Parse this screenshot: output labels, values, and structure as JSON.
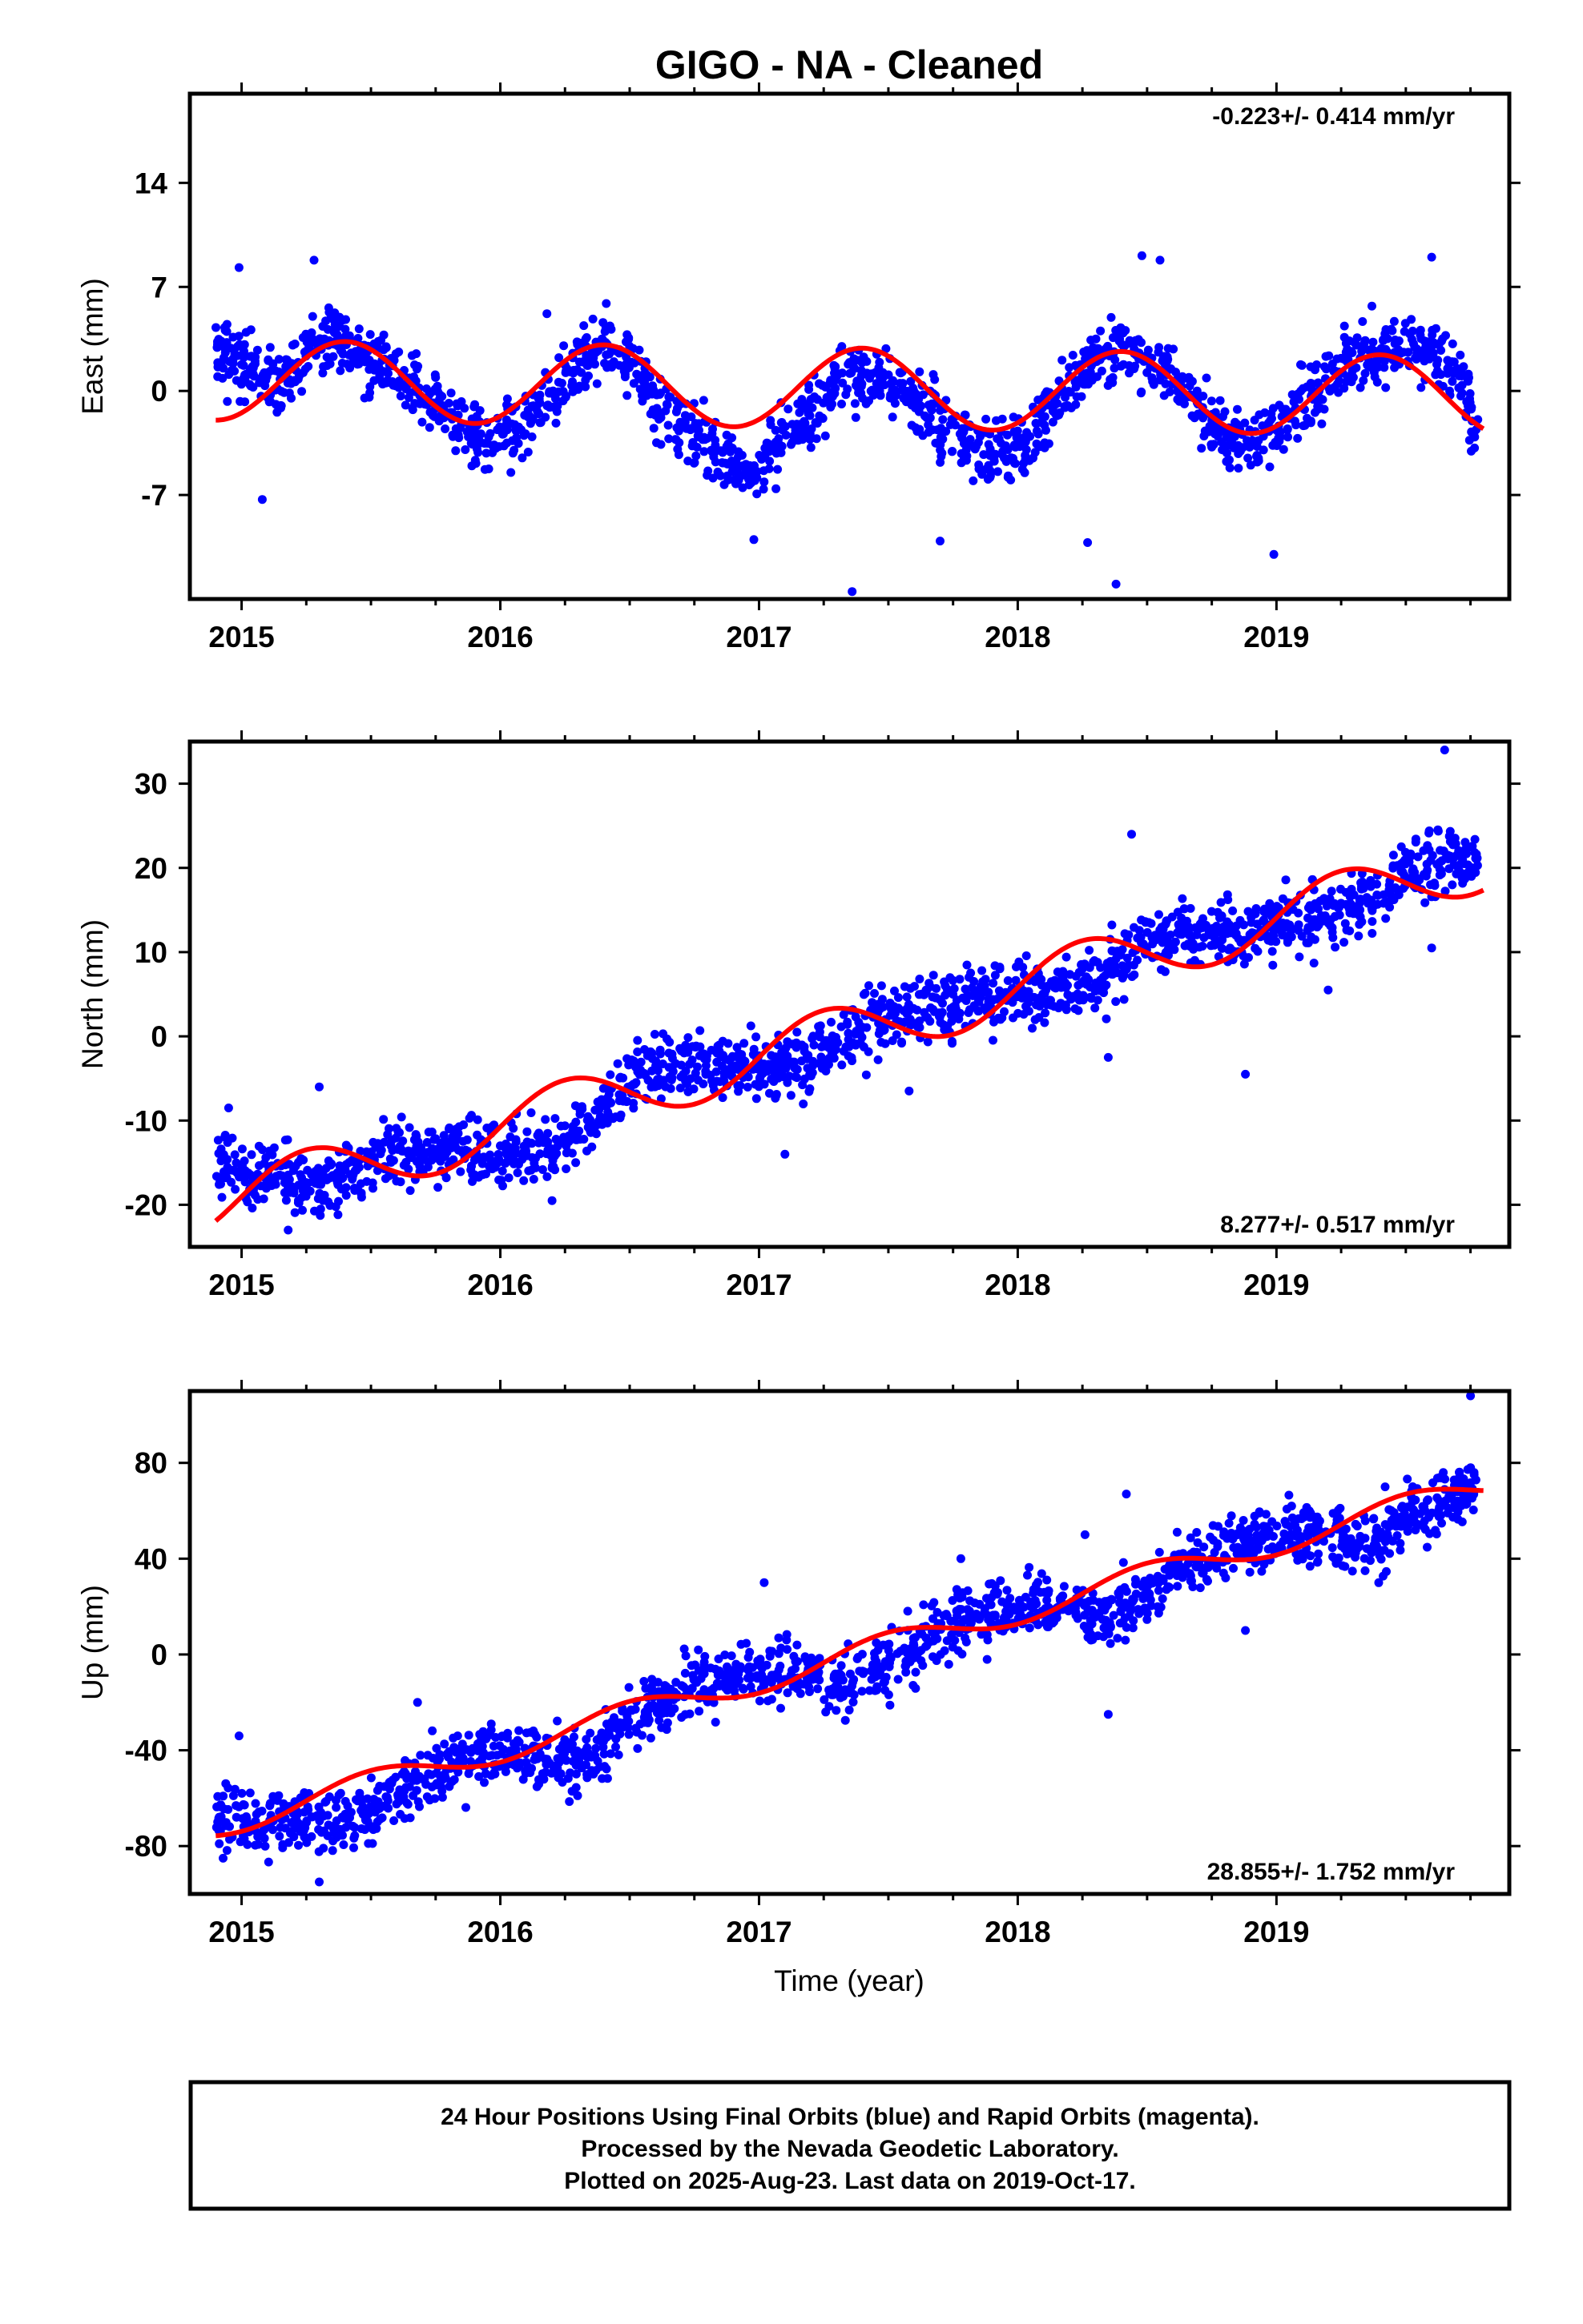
{
  "title": "GIGO  - NA - Cleaned",
  "colors": {
    "final_orbits": "#0000ff",
    "fit_line": "#ff0000",
    "frame": "#000000"
  },
  "chart_data": [
    {
      "type": "scatter",
      "ylabel": "East (mm)",
      "rate_label": "-0.223+/- 0.414 mm/yr",
      "xlim": [
        2014.8,
        2019.9
      ],
      "ylim": [
        -14,
        20
      ],
      "xticks": [
        2015,
        2016,
        2017,
        2018,
        2019
      ],
      "xtick_labels": [
        "2015",
        "2016",
        "2017",
        "2018",
        "2019"
      ],
      "yticks": [
        -7,
        0,
        7,
        14
      ],
      "ytick_labels": [
        "-7",
        "0",
        "7",
        "14"
      ],
      "model": {
        "fit_span": [
          2014.9,
          2019.8
        ],
        "offset": 0.2,
        "rate": -0.223,
        "ref": 2017.3,
        "amp": 2.7,
        "phase": 2015.15,
        "wiggle": [
          0,
          0,
          0,
          0,
          0
        ]
      },
      "series": [
        {
          "style": "points",
          "x": [
            2014.9,
            2014.97,
            2015.05,
            2015.15,
            2015.25,
            2015.35,
            2015.42,
            2015.5,
            2015.6,
            2015.7,
            2015.8,
            2015.9,
            2016.0,
            2016.1,
            2016.2,
            2016.3,
            2016.4,
            2016.5,
            2016.6,
            2016.7,
            2016.8,
            2016.9,
            2017.0,
            2017.1,
            2017.2,
            2017.3,
            2017.4,
            2017.5,
            2017.6,
            2017.7,
            2017.8,
            2017.9,
            2018.0,
            2018.1,
            2018.2,
            2018.3,
            2018.4,
            2018.5,
            2018.6,
            2018.7,
            2018.8,
            2018.9,
            2019.0,
            2019.1,
            2019.2,
            2019.3,
            2019.4,
            2019.5,
            2019.6,
            2019.7,
            2019.78
          ],
          "y": [
            3.5,
            2.0,
            1.0,
            0.5,
            2.5,
            3.5,
            3.0,
            2.0,
            1.0,
            0.0,
            -1.5,
            -3.0,
            -3.0,
            -2.0,
            0.0,
            1.5,
            3.0,
            2.0,
            -1.0,
            -2.0,
            -3.5,
            -5.0,
            -5.5,
            -3.0,
            -1.5,
            0.5,
            1.0,
            0.5,
            -0.5,
            -2.0,
            -3.5,
            -4.5,
            -4.0,
            -2.0,
            0.0,
            2.0,
            2.5,
            2.0,
            0.5,
            -1.0,
            -3.0,
            -3.5,
            -3.0,
            -1.0,
            1.0,
            2.0,
            2.5,
            3.0,
            2.5,
            1.0,
            -3.0
          ]
        },
        {
          "style": "outliers",
          "x": [
            2014.99,
            2015.08,
            2015.28,
            2016.18,
            2016.98,
            2017.36,
            2017.7,
            2018.27,
            2018.48,
            2018.55,
            2018.38,
            2018.99,
            2019.6
          ],
          "y": [
            8.3,
            -7.3,
            8.8,
            5.2,
            -10.0,
            -13.5,
            -10.1,
            -10.2,
            9.1,
            8.8,
            -13.0,
            -11.0,
            9.0
          ]
        }
      ]
    },
    {
      "type": "scatter",
      "ylabel": "North (mm)",
      "rate_label": "8.277+/- 0.517 mm/yr",
      "xlim": [
        2014.8,
        2019.9
      ],
      "ylim": [
        -25,
        35
      ],
      "xticks": [
        2015,
        2016,
        2017,
        2018,
        2019
      ],
      "xtick_labels": [
        "2015",
        "2016",
        "2017",
        "2018",
        "2019"
      ],
      "yticks": [
        -20,
        -10,
        0,
        10,
        20,
        30
      ],
      "ytick_labels": [
        "-20",
        "-10",
        "0",
        "10",
        "20",
        "30"
      ],
      "model": {
        "fit_span": [
          2014.9,
          2019.8
        ],
        "offset": 0.0,
        "rate": 8.277,
        "ref": 2017.3,
        "amp": 3.5,
        "phase": 2015.0,
        "wiggle": [
          0,
          0,
          0,
          0,
          0
        ]
      },
      "series": [
        {
          "style": "points",
          "x": [
            2014.9,
            2015.0,
            2015.1,
            2015.2,
            2015.3,
            2015.4,
            2015.5,
            2015.6,
            2015.7,
            2015.8,
            2015.9,
            2016.0,
            2016.1,
            2016.2,
            2016.3,
            2016.4,
            2016.5,
            2016.6,
            2016.7,
            2016.8,
            2016.9,
            2017.0,
            2017.1,
            2017.2,
            2017.3,
            2017.4,
            2017.5,
            2017.6,
            2017.7,
            2017.8,
            2017.9,
            2018.0,
            2018.1,
            2018.2,
            2018.3,
            2018.4,
            2018.5,
            2018.6,
            2018.7,
            2018.8,
            2018.9,
            2019.0,
            2019.1,
            2019.2,
            2019.3,
            2019.4,
            2019.5,
            2019.6,
            2019.7,
            2019.78
          ],
          "y": [
            -15.0,
            -16.0,
            -16.5,
            -17.0,
            -17.5,
            -16.5,
            -15.0,
            -14.0,
            -13.5,
            -13.5,
            -14.0,
            -14.0,
            -13.5,
            -13.0,
            -12.0,
            -8.0,
            -5.0,
            -3.5,
            -3.0,
            -3.0,
            -3.5,
            -4.0,
            -3.5,
            -3.0,
            -1.0,
            1.0,
            2.5,
            3.0,
            3.5,
            4.0,
            4.5,
            5.0,
            5.0,
            5.5,
            6.5,
            9.0,
            11.0,
            12.0,
            12.0,
            12.0,
            12.5,
            13.0,
            13.5,
            14.0,
            15.0,
            17.0,
            19.0,
            20.5,
            21.0,
            21.0
          ]
        },
        {
          "style": "outliers",
          "x": [
            2014.95,
            2015.3,
            2015.18,
            2016.2,
            2017.1,
            2017.58,
            2018.35,
            2018.44,
            2018.88,
            2019.6,
            2019.65,
            2019.2
          ],
          "y": [
            -8.5,
            -6.0,
            -23.0,
            -19.5,
            -14.0,
            -6.5,
            -2.5,
            24.0,
            -4.5,
            10.5,
            34.0,
            5.5
          ]
        }
      ]
    },
    {
      "type": "scatter",
      "ylabel": "Up (mm)",
      "rate_label": "28.855+/- 1.752 mm/yr",
      "xlabel": "Time (year)",
      "xlim": [
        2014.8,
        2019.9
      ],
      "ylim": [
        -100,
        110
      ],
      "xticks": [
        2015,
        2016,
        2017,
        2018,
        2019
      ],
      "xtick_labels": [
        "2015",
        "2016",
        "2017",
        "2018",
        "2019"
      ],
      "yticks": [
        -80,
        -40,
        0,
        40,
        80
      ],
      "ytick_labels": [
        "-80",
        "-40",
        "0",
        "40",
        "80"
      ],
      "model": {
        "fit_span": [
          2014.9,
          2019.8
        ],
        "offset": -2.0,
        "rate": 28.855,
        "ref": 2017.3,
        "amp": 5.5,
        "phase": 2015.25,
        "wiggle": [
          0,
          0,
          0,
          0,
          0
        ]
      },
      "series": [
        {
          "style": "points",
          "x": [
            2014.9,
            2015.0,
            2015.1,
            2015.2,
            2015.3,
            2015.4,
            2015.5,
            2015.6,
            2015.7,
            2015.8,
            2015.9,
            2016.0,
            2016.1,
            2016.2,
            2016.3,
            2016.4,
            2016.5,
            2016.6,
            2016.7,
            2016.8,
            2016.9,
            2017.0,
            2017.1,
            2017.2,
            2017.3,
            2017.4,
            2017.5,
            2017.6,
            2017.7,
            2017.8,
            2017.9,
            2018.0,
            2018.1,
            2018.2,
            2018.3,
            2018.4,
            2018.5,
            2018.6,
            2018.7,
            2018.8,
            2018.9,
            2019.0,
            2019.1,
            2019.2,
            2019.3,
            2019.4,
            2019.5,
            2019.6,
            2019.7,
            2019.78
          ],
          "y": [
            -68.0,
            -68.0,
            -70.0,
            -70.0,
            -71.0,
            -70.0,
            -66.0,
            -58.0,
            -52.0,
            -47.0,
            -43.0,
            -40.0,
            -40.0,
            -42.0,
            -45.0,
            -40.0,
            -30.0,
            -20.0,
            -15.0,
            -12.0,
            -10.0,
            -8.0,
            -8.0,
            -10.0,
            -12.0,
            -10.0,
            -5.0,
            3.0,
            10.0,
            14.0,
            17.0,
            20.0,
            22.0,
            18.0,
            15.0,
            18.0,
            26.0,
            35.0,
            40.0,
            43.0,
            45.0,
            48.0,
            50.0,
            48.0,
            45.0,
            47.0,
            55.0,
            62.0,
            67.0,
            70.0
          ]
        },
        {
          "style": "outliers",
          "x": [
            2014.99,
            2015.3,
            2015.68,
            2016.1,
            2017.02,
            2017.78,
            2018.26,
            2018.35,
            2018.88,
            2019.42,
            2019.75,
            2018.42
          ],
          "y": [
            -34.0,
            -95.0,
            -20.0,
            -45.0,
            30.0,
            40.0,
            50.0,
            -25.0,
            10.0,
            70.0,
            108.0,
            67.0
          ]
        }
      ]
    }
  ],
  "footer": {
    "lines": [
      "24 Hour Positions Using Final Orbits (blue) and Rapid Orbits (magenta).",
      "Processed by the Nevada Geodetic Laboratory.",
      "Plotted on 2025-Aug-23. Last data on 2019-Oct-17."
    ]
  }
}
